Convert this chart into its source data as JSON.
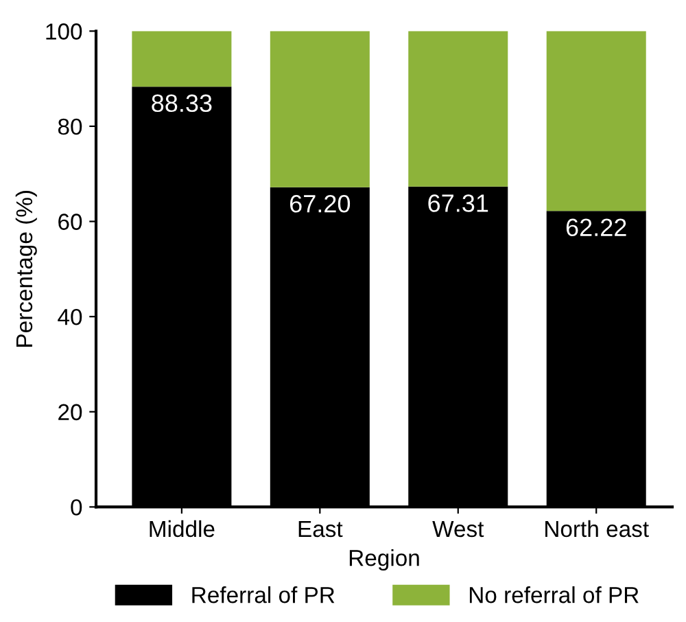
{
  "chart_data": {
    "type": "bar",
    "stacked": true,
    "xlabel": "Region",
    "ylabel": "Percentage (%)",
    "categories": [
      "Middle",
      "East",
      "West",
      "North east"
    ],
    "series": [
      {
        "name": "Referral of PR",
        "color": "#000000",
        "values": [
          88.33,
          67.2,
          67.31,
          62.22
        ],
        "value_labels": [
          "88.33",
          "67.20",
          "67.31",
          "62.22"
        ]
      },
      {
        "name": "No referral of PR",
        "color": "#8db33a",
        "values": [
          11.67,
          32.8,
          32.69,
          37.78
        ]
      }
    ],
    "ylim": [
      0,
      100
    ],
    "yticks": [
      0,
      20,
      40,
      60,
      80,
      100
    ],
    "grid": false,
    "legend": "bottom"
  }
}
